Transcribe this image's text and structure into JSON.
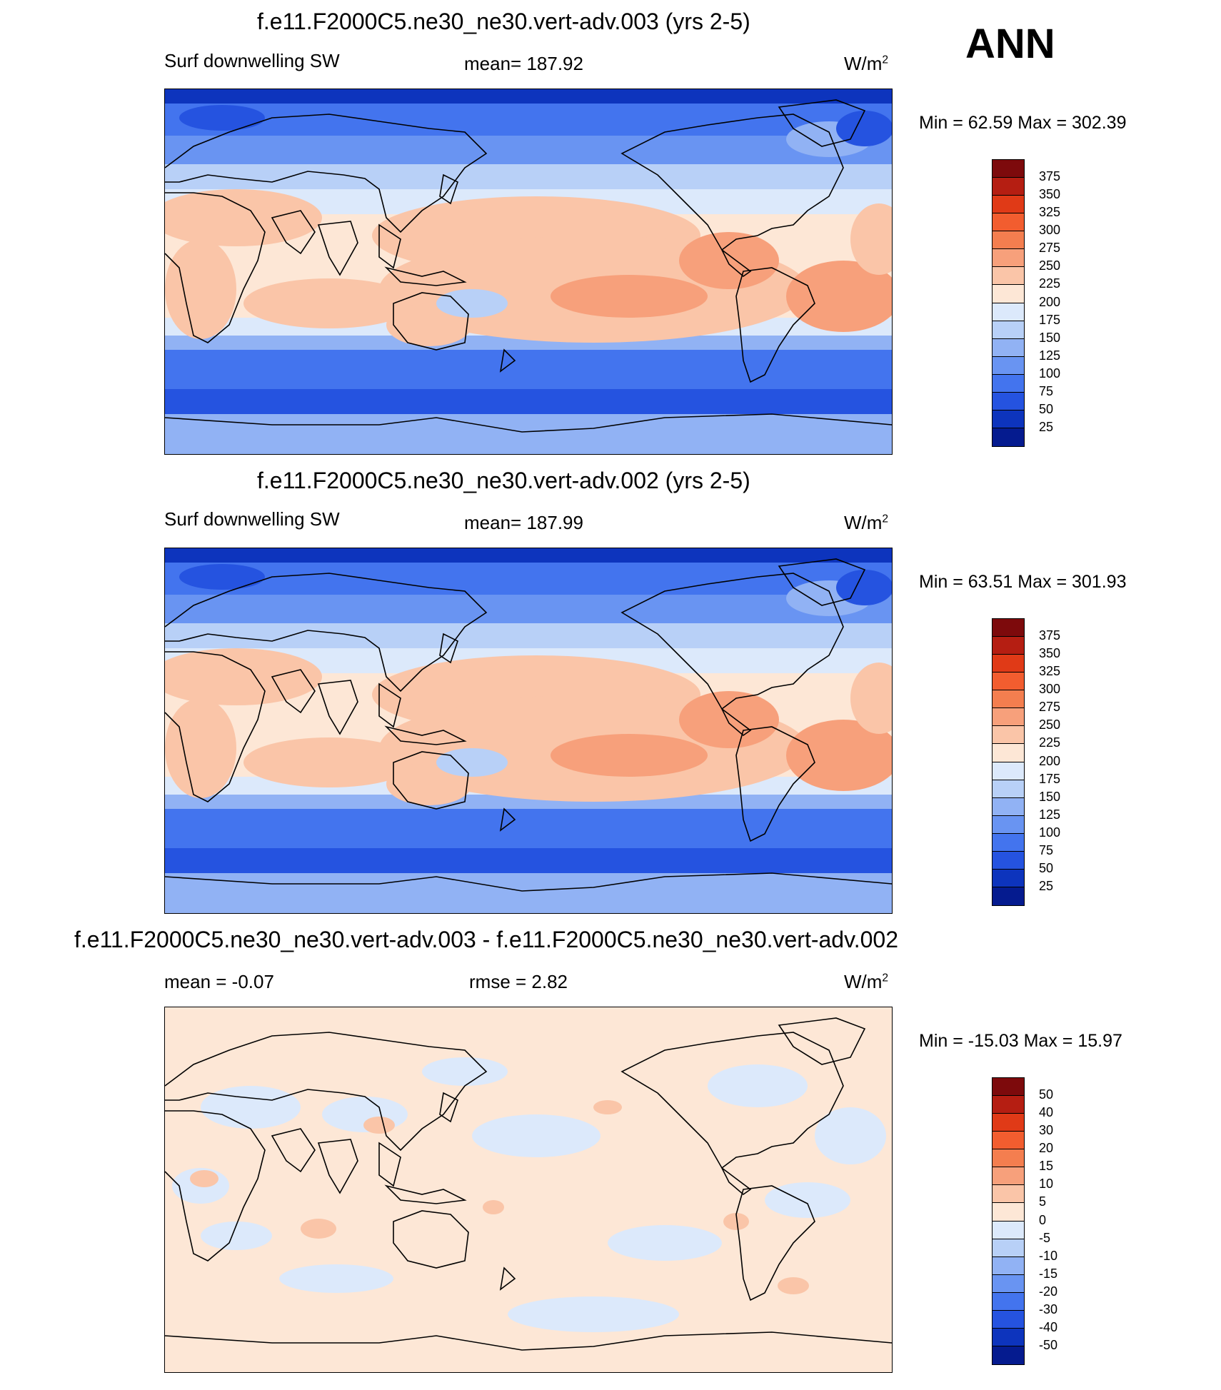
{
  "season": "ANN",
  "panels": [
    {
      "title": "f.e11.F2000C5.ne30_ne30.vert-adv.003 (yrs 2-5)",
      "left_label": "Surf downwelling SW",
      "center_label": "mean= 187.92",
      "units": "W/m",
      "units_sup": "2",
      "minmax": "Min =  62.59 Max = 302.39",
      "colorbar_labels": [
        "375",
        "350",
        "325",
        "300",
        "275",
        "250",
        "225",
        "200",
        "175",
        "150",
        "125",
        "100",
        "75",
        "50",
        "25"
      ]
    },
    {
      "title": "f.e11.F2000C5.ne30_ne30.vert-adv.002 (yrs 2-5)",
      "left_label": "Surf downwelling SW",
      "center_label": "mean= 187.99",
      "units": "W/m",
      "units_sup": "2",
      "minmax": "Min =  63.51 Max = 301.93",
      "colorbar_labels": [
        "375",
        "350",
        "325",
        "300",
        "275",
        "250",
        "225",
        "200",
        "175",
        "150",
        "125",
        "100",
        "75",
        "50",
        "25"
      ]
    },
    {
      "title": "f.e11.F2000C5.ne30_ne30.vert-adv.003 - f.e11.F2000C5.ne30_ne30.vert-adv.002",
      "left_label": "mean =  -0.07",
      "center_label": "rmse =   2.82",
      "units": "W/m",
      "units_sup": "2",
      "minmax": "Min = -15.03 Max =  15.97",
      "colorbar_labels": [
        "50",
        "40",
        "30",
        "20",
        "15",
        "10",
        "5",
        "0",
        "-5",
        "-10",
        "-15",
        "-20",
        "-30",
        "-40",
        "-50"
      ]
    }
  ],
  "colors": {
    "scale": [
      "#7d0a0c",
      "#b51e12",
      "#e03a17",
      "#f25d2f",
      "#f47e4f",
      "#f7a07b",
      "#fac5a8",
      "#fde7d6",
      "#dce9fb",
      "#b8d0f7",
      "#91b2f4",
      "#6994f2",
      "#4374ee",
      "#2553e0",
      "#0d34bd",
      "#051b8f"
    ],
    "land_line": "#000000",
    "frame": "#000000"
  }
}
